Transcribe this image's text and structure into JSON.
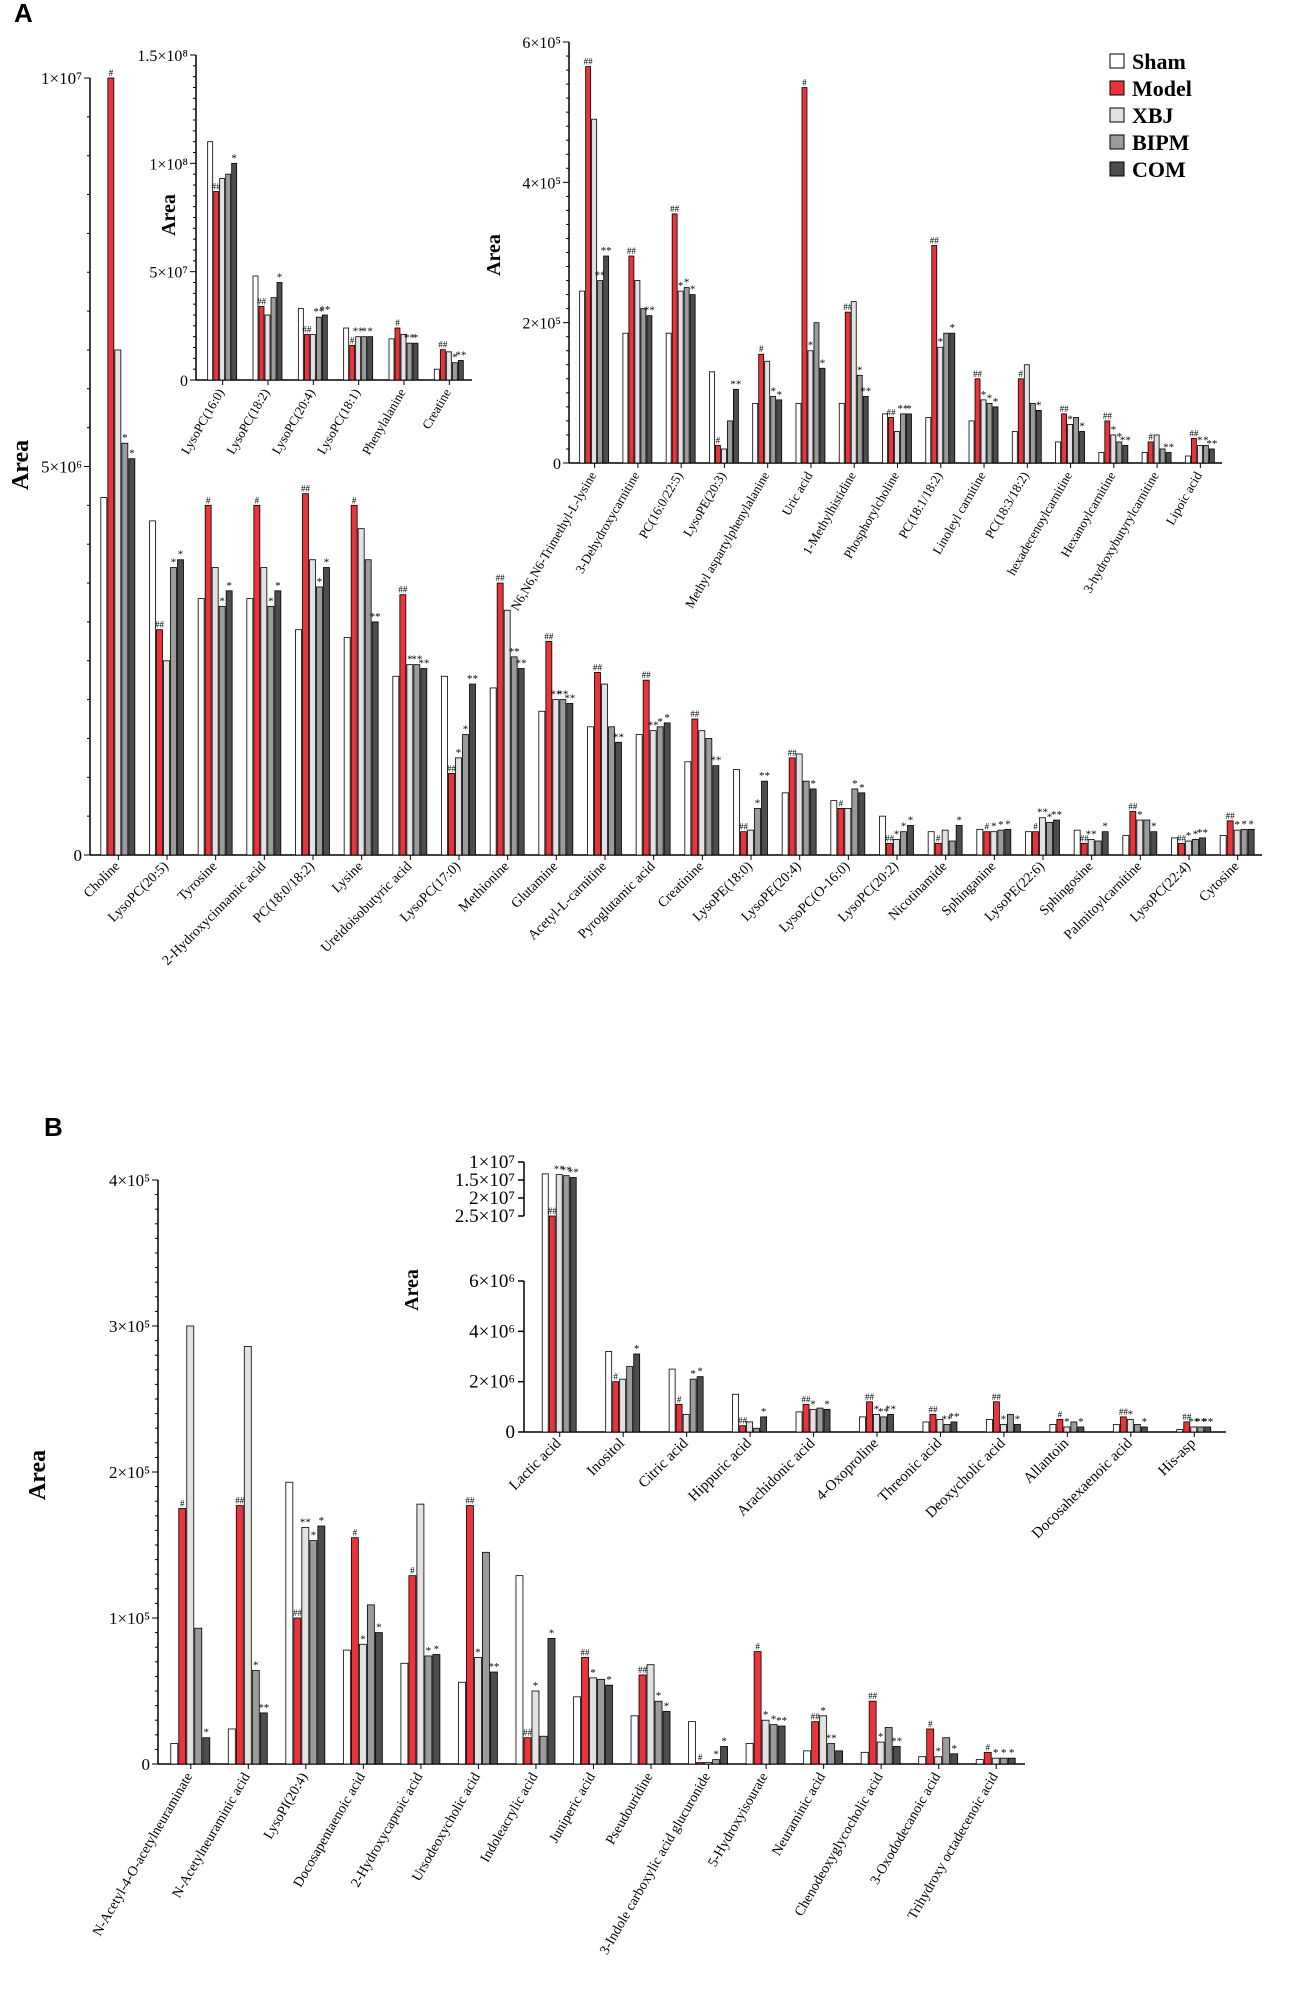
{
  "figure": {
    "panel_a_label": "A",
    "panel_b_label": "B"
  },
  "legend": {
    "items": [
      {
        "name": "Sham",
        "color": "#ffffff"
      },
      {
        "name": "Model",
        "color": "#e8343a"
      },
      {
        "name": "XBJ",
        "color": "#e2e2e2"
      },
      {
        "name": "BIPM",
        "color": "#9b9b9b"
      },
      {
        "name": "COM",
        "color": "#4d4d4d"
      }
    ]
  },
  "chart_data": [
    {
      "id": "A_main",
      "type": "bar",
      "ylabel": "Area",
      "ylim": [
        0,
        10000000
      ],
      "yticks": [
        0,
        5000000,
        10000000
      ],
      "ytick_labels": [
        "0",
        "5×10⁶",
        "1×10⁷"
      ],
      "series_names": [
        "Sham",
        "Model",
        "XBJ",
        "BIPM",
        "COM"
      ],
      "categories": [
        "Choline",
        "LysoPC(20:5)",
        "Tyrosine",
        "2-Hydroxycinnamic acid",
        "PC(18:0/18:2)",
        "Lysine",
        "Ureidoisobutyric acid",
        "LysoPC(17:0)",
        "Methionine",
        "Glutamine",
        "Acetyl-L-carnitine",
        "Pyroglutamic acid",
        "Creatinine",
        "LysoPE(18:0)",
        "LysoPE(20:4)",
        "LysoPC(O-16:0)",
        "LysoPC(20:2)",
        "Nicotinamide",
        "Sphinganine",
        "LysoPE(22:6)",
        "Sphingosine",
        "Palmitoylcarnitine",
        "LysoPC(22:4)",
        "Cytosine"
      ],
      "values": [
        [
          4600000,
          10000000,
          6500000,
          5300000,
          5100000
        ],
        [
          4300000,
          2900000,
          2500000,
          3700000,
          3800000
        ],
        [
          3300000,
          4500000,
          3700000,
          3200000,
          3400000
        ],
        [
          3300000,
          4500000,
          3700000,
          3200000,
          3400000
        ],
        [
          2900000,
          4650000,
          3800000,
          3450000,
          3700000
        ],
        [
          2800000,
          4500000,
          4200000,
          3800000,
          3000000
        ],
        [
          2300000,
          3350000,
          2450000,
          2450000,
          2400000
        ],
        [
          2300000,
          1050000,
          1250000,
          1550000,
          2200000
        ],
        [
          2150000,
          3500000,
          3150000,
          2550000,
          2400000
        ],
        [
          1850000,
          2750000,
          2000000,
          2000000,
          1950000
        ],
        [
          1650000,
          2350000,
          2200000,
          1650000,
          1450000
        ],
        [
          1550000,
          2250000,
          1600000,
          1650000,
          1700000
        ],
        [
          1200000,
          1750000,
          1600000,
          1500000,
          1150000
        ],
        [
          1100000,
          300000,
          320000,
          600000,
          950000
        ],
        [
          800000,
          1250000,
          1300000,
          950000,
          850000
        ],
        [
          700000,
          600000,
          600000,
          850000,
          800000
        ],
        [
          500000,
          150000,
          200000,
          300000,
          380000
        ],
        [
          300000,
          150000,
          320000,
          180000,
          380000
        ],
        [
          330000,
          300000,
          300000,
          320000,
          330000
        ],
        [
          300000,
          300000,
          480000,
          420000,
          450000
        ],
        [
          320000,
          150000,
          200000,
          180000,
          300000
        ],
        [
          250000,
          560000,
          450000,
          450000,
          300000
        ],
        [
          220000,
          150000,
          180000,
          200000,
          220000
        ],
        [
          250000,
          440000,
          320000,
          330000,
          330000
        ]
      ],
      "annotations": [
        [
          "",
          "#",
          "",
          "*",
          "*"
        ],
        [
          "",
          "##",
          "",
          "*",
          "*"
        ],
        [
          "",
          "#",
          "",
          "*",
          "*"
        ],
        [
          "",
          "#",
          "",
          "*",
          "*"
        ],
        [
          "",
          "##",
          "",
          "*",
          "*"
        ],
        [
          "",
          "#",
          "",
          "",
          "**"
        ],
        [
          "",
          "##",
          "*",
          "**",
          "**"
        ],
        [
          "",
          "##",
          "*",
          "*",
          "**"
        ],
        [
          "",
          "##",
          "",
          "**",
          "**"
        ],
        [
          "",
          "##",
          "**",
          "**",
          "**"
        ],
        [
          "",
          "##",
          "",
          "",
          "**"
        ],
        [
          "",
          "##",
          "**",
          "*",
          "*"
        ],
        [
          "",
          "##",
          "",
          "",
          "**"
        ],
        [
          "",
          "##",
          "",
          "*",
          "**"
        ],
        [
          "",
          "##",
          "",
          "",
          "*"
        ],
        [
          "",
          "#",
          "",
          "*",
          "*"
        ],
        [
          "",
          "##",
          "*",
          "*",
          "*"
        ],
        [
          "",
          "#",
          "",
          "",
          "*"
        ],
        [
          "",
          "#",
          "*",
          "*",
          "*"
        ],
        [
          "",
          "#",
          "**",
          "*",
          "**"
        ],
        [
          "",
          "##",
          "**",
          "",
          "*"
        ],
        [
          "",
          "##",
          "*",
          "",
          "*"
        ],
        [
          "",
          "##",
          "*",
          "*",
          "**"
        ],
        [
          "",
          "##",
          "*",
          "*",
          "*"
        ]
      ]
    },
    {
      "id": "A_inset_left",
      "type": "bar",
      "ylabel": "Area",
      "ylim": [
        0,
        150000000
      ],
      "yticks": [
        0,
        50000000,
        100000000,
        150000000
      ],
      "ytick_labels": [
        "0",
        "5×10⁷",
        "1×10⁸",
        "1.5×10⁸"
      ],
      "series_names": [
        "Sham",
        "Model",
        "XBJ",
        "BIPM",
        "COM"
      ],
      "categories": [
        "LysoPC(16:0)",
        "LysoPC(18:2)",
        "LysoPC(20:4)",
        "LysoPC(18:1)",
        "Phenylalanine",
        "Creatine"
      ],
      "values": [
        [
          110000000,
          87000000,
          93000000,
          95000000,
          100000000
        ],
        [
          48000000,
          34000000,
          30000000,
          38000000,
          45000000
        ],
        [
          33000000,
          21000000,
          21000000,
          29000000,
          30000000
        ],
        [
          24000000,
          16000000,
          20000000,
          20000000,
          20000000
        ],
        [
          19000000,
          24000000,
          21000000,
          17000000,
          17000000
        ],
        [
          5000000,
          14000000,
          13000000,
          8000000,
          9000000
        ]
      ],
      "annotations": [
        [
          "",
          "##",
          "",
          "",
          "*"
        ],
        [
          "",
          "##",
          "",
          "",
          "*"
        ],
        [
          "",
          "##",
          "",
          "**",
          "**"
        ],
        [
          "",
          "#",
          "**",
          "*",
          "*"
        ],
        [
          "",
          "#",
          "",
          "**",
          "*"
        ],
        [
          "",
          "##",
          "",
          "*",
          "**"
        ]
      ]
    },
    {
      "id": "A_inset_right",
      "type": "bar",
      "ylabel": "Area",
      "ylim": [
        0,
        600000
      ],
      "yticks": [
        0,
        200000,
        400000,
        600000
      ],
      "ytick_labels": [
        "0",
        "2×10⁵",
        "4×10⁵",
        "6×10⁵"
      ],
      "series_names": [
        "Sham",
        "Model",
        "XBJ",
        "BIPM",
        "COM"
      ],
      "categories": [
        "N6,N6,N6-Trimethyl-L-lysine",
        "3-Dehydroxycarnitine",
        "PC(16:0/22:5)",
        "LysoPE(20:3)",
        "Methyl aspartylphenylalanine",
        "Uric acid",
        "1-Methylhistidine",
        "Phosphorylcholine",
        "PC(18:1/18:2)",
        "Linoleyl carnitine",
        "PC(18:3/18:2)",
        "hexadecenoylcarnitine",
        "Hexanoylcarnitine",
        "3-hydroxybutyrylcarnitine",
        "Lipoic acid"
      ],
      "values": [
        [
          245000,
          565000,
          490000,
          260000,
          295000
        ],
        [
          185000,
          295000,
          260000,
          220000,
          210000
        ],
        [
          185000,
          355000,
          245000,
          250000,
          240000
        ],
        [
          130000,
          25000,
          20000,
          60000,
          105000
        ],
        [
          85000,
          155000,
          145000,
          95000,
          90000
        ],
        [
          85000,
          535000,
          160000,
          200000,
          135000
        ],
        [
          85000,
          215000,
          230000,
          125000,
          95000
        ],
        [
          70000,
          65000,
          45000,
          70000,
          70000
        ],
        [
          65000,
          310000,
          165000,
          185000,
          185000
        ],
        [
          60000,
          120000,
          90000,
          85000,
          80000
        ],
        [
          45000,
          120000,
          140000,
          85000,
          75000
        ],
        [
          30000,
          70000,
          55000,
          65000,
          45000
        ],
        [
          15000,
          60000,
          40000,
          30000,
          25000
        ],
        [
          15000,
          30000,
          40000,
          20000,
          15000
        ],
        [
          10000,
          35000,
          25000,
          25000,
          20000
        ]
      ],
      "annotations": [
        [
          "",
          "##",
          "",
          "**",
          "**"
        ],
        [
          "",
          "##",
          "",
          "",
          "**"
        ],
        [
          "",
          "##",
          "*",
          "*",
          "*"
        ],
        [
          "",
          "#",
          "",
          "",
          "**"
        ],
        [
          "",
          "#",
          "",
          "*",
          "*"
        ],
        [
          "",
          "#",
          "*",
          "",
          "*"
        ],
        [
          "",
          "##",
          "",
          "*",
          "**"
        ],
        [
          "",
          "##",
          "",
          "**",
          "*"
        ],
        [
          "",
          "##",
          "*",
          "",
          "*"
        ],
        [
          "",
          "##",
          "*",
          "*",
          "*"
        ],
        [
          "",
          "#",
          "",
          "",
          "*"
        ],
        [
          "",
          "##",
          "*",
          "",
          "*"
        ],
        [
          "",
          "##",
          "*",
          "*",
          "**"
        ],
        [
          "",
          "#",
          "",
          "",
          "**"
        ],
        [
          "",
          "##",
          "*",
          "*",
          "**"
        ]
      ]
    },
    {
      "id": "B_main",
      "type": "bar",
      "ylabel": "Area",
      "ylim": [
        0,
        400000
      ],
      "yticks": [
        0,
        100000,
        200000,
        300000,
        400000
      ],
      "ytick_labels": [
        "0",
        "1×10⁵",
        "2×10⁵",
        "3×10⁵",
        "4×10⁵"
      ],
      "series_names": [
        "Sham",
        "Model",
        "XBJ",
        "BIPM",
        "COM"
      ],
      "categories": [
        "N-Acetyl-4-O-acetylneuraminate",
        "N-Acetylneuraminic acid",
        "LysoPI(20:4)",
        "Docosapentaenoic acid",
        "2-Hydroxycaproic acid",
        "Ursodeoxycholic acid",
        "Indoleacrylic acid",
        "Juniperic acid",
        "Pseudouridine",
        "3-Indole carboxylic acid glucuronide",
        "5-Hydroxyisourate",
        "Neuraminic acid",
        "Chenodeoxyglycocholic acid",
        "3-Oxododecanoic acid",
        "Trihydroxy octadecenoic acid"
      ],
      "values": [
        [
          14000,
          175000,
          300000,
          93000,
          18000
        ],
        [
          24000,
          177000,
          286000,
          64000,
          35000
        ],
        [
          193000,
          100000,
          162000,
          153000,
          163000
        ],
        [
          78000,
          155000,
          82000,
          109000,
          90000
        ],
        [
          69000,
          129000,
          178000,
          74000,
          75000
        ],
        [
          56000,
          177000,
          73000,
          145000,
          63000
        ],
        [
          129000,
          18000,
          50000,
          19000,
          86000
        ],
        [
          46000,
          73000,
          59000,
          58000,
          54000
        ],
        [
          33000,
          61000,
          68000,
          43000,
          36000
        ],
        [
          29000,
          1000,
          1000,
          3000,
          12000
        ],
        [
          14000,
          77000,
          30000,
          27000,
          26000
        ],
        [
          9000,
          29000,
          33000,
          14000,
          9000
        ],
        [
          8000,
          43000,
          15000,
          25000,
          12000
        ],
        [
          5000,
          24000,
          5000,
          18000,
          7000
        ],
        [
          3000,
          8000,
          4000,
          4000,
          4000
        ]
      ],
      "annotations": [
        [
          "",
          "#",
          "",
          "",
          "*"
        ],
        [
          "",
          "##",
          "",
          "*",
          "**"
        ],
        [
          "",
          "##",
          "**",
          "*",
          "*"
        ],
        [
          "",
          "#",
          "*",
          "",
          "*"
        ],
        [
          "",
          "#",
          "",
          "*",
          "*"
        ],
        [
          "",
          "##",
          "*",
          "",
          "**"
        ],
        [
          "",
          "##",
          "*",
          "",
          "*"
        ],
        [
          "",
          "##",
          "*",
          "",
          "*"
        ],
        [
          "",
          "##",
          "",
          "*",
          "*"
        ],
        [
          "",
          "#",
          "",
          "*",
          "*"
        ],
        [
          "",
          "#",
          "*",
          "*",
          "**"
        ],
        [
          "",
          "##",
          "*",
          "**",
          ""
        ],
        [
          "",
          "##",
          "*",
          "",
          "**"
        ],
        [
          "",
          "#",
          "*",
          "",
          "*"
        ],
        [
          "",
          "#",
          "*",
          "*",
          "*"
        ]
      ]
    },
    {
      "id": "B_inset",
      "type": "bar",
      "ylabel": "Area",
      "broken_axis": true,
      "ylim_lower": [
        0,
        6000000
      ],
      "yticks_lower": [
        0,
        2000000,
        4000000,
        6000000
      ],
      "ytick_labels_lower": [
        "0",
        "2×10⁶",
        "4×10⁶",
        "6×10⁶"
      ],
      "ylim_upper": [
        10000000,
        25000000
      ],
      "yticks_upper": [
        10000000,
        15000000,
        20000000,
        25000000
      ],
      "ytick_labels_upper": [
        "1×10⁷",
        "1.5×10⁷",
        "2×10⁷",
        "2.5×10⁷"
      ],
      "series_names": [
        "Sham",
        "Model",
        "XBJ",
        "BIPM",
        "COM"
      ],
      "categories": [
        "Lactic acid",
        "Inositol",
        "Citric acid",
        "Hippuric acid",
        "Arachidonic acid",
        "4-Oxoproline",
        "Threonic acid",
        "Deoxycholic acid",
        "Allantoin",
        "Docosahexaenoic acid",
        "His-asp"
      ],
      "values": [
        [
          13300000,
          25000000,
          13500000,
          13800000,
          14300000
        ],
        [
          3200000,
          2000000,
          2100000,
          2600000,
          3100000
        ],
        [
          2500000,
          1100000,
          700000,
          2100000,
          2200000
        ],
        [
          1500000,
          250000,
          400000,
          150000,
          600000
        ],
        [
          800000,
          1100000,
          900000,
          950000,
          900000
        ],
        [
          600000,
          1200000,
          700000,
          600000,
          700000
        ],
        [
          400000,
          700000,
          500000,
          300000,
          400000
        ],
        [
          500000,
          1200000,
          300000,
          700000,
          300000
        ],
        [
          300000,
          500000,
          200000,
          400000,
          200000
        ],
        [
          300000,
          600000,
          500000,
          300000,
          200000
        ],
        [
          100000,
          400000,
          200000,
          200000,
          200000
        ]
      ],
      "annotations": [
        [
          "",
          "##",
          "**",
          "**",
          "**"
        ],
        [
          "",
          "#",
          "",
          "",
          "*"
        ],
        [
          "",
          "#",
          "",
          "*",
          "*"
        ],
        [
          "",
          "##",
          "",
          "",
          "*"
        ],
        [
          "",
          "##",
          "*",
          "",
          "*"
        ],
        [
          "",
          "##",
          "*",
          "**",
          "**"
        ],
        [
          "",
          "##",
          "",
          "**",
          "**"
        ],
        [
          "",
          "##",
          "*",
          "",
          "*"
        ],
        [
          "",
          "#",
          "*",
          "",
          "*"
        ],
        [
          "",
          "##",
          "*",
          "",
          "*"
        ],
        [
          "",
          "##",
          "**",
          "**",
          "**"
        ]
      ]
    }
  ]
}
